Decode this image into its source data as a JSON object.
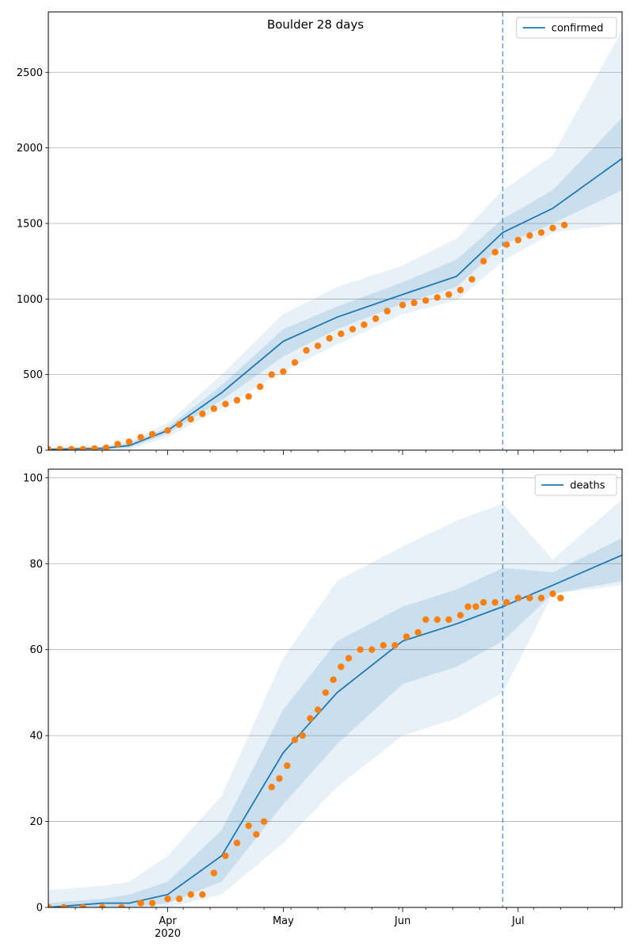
{
  "figure": {
    "title": "Boulder 28 days"
  },
  "colors": {
    "model": "#1f77b4",
    "observed": "#ff7f0e",
    "band": "#1f77b4",
    "grid": "#b0b0b0"
  },
  "x_axis": {
    "start": "2020-03-01",
    "end": "2020-07-28",
    "ticks": [
      {
        "date": "2020-04-01",
        "label": "Apr",
        "sublabel": "2020"
      },
      {
        "date": "2020-05-01",
        "label": "May",
        "sublabel": ""
      },
      {
        "date": "2020-06-01",
        "label": "Jun",
        "sublabel": ""
      },
      {
        "date": "2020-07-01",
        "label": "Jul",
        "sublabel": ""
      }
    ],
    "vline_date": "2020-06-27"
  },
  "chart_data": [
    {
      "type": "line",
      "legend": "confirmed",
      "legend_position": "top-right",
      "grid": "y",
      "ylim": [
        0,
        2900
      ],
      "yticks": [
        0,
        500,
        1000,
        1500,
        2000,
        2500
      ],
      "forecast_vline": "2020-06-27",
      "model": {
        "name": "confirmed",
        "x": [
          "2020-03-01",
          "2020-03-15",
          "2020-03-22",
          "2020-04-01",
          "2020-04-15",
          "2020-05-01",
          "2020-05-15",
          "2020-06-01",
          "2020-06-15",
          "2020-06-27",
          "2020-07-10",
          "2020-07-28"
        ],
        "median": [
          5,
          12,
          30,
          130,
          380,
          720,
          880,
          1030,
          1150,
          1440,
          1600,
          1930
        ],
        "band_inner": {
          "lower": [
            0,
            5,
            15,
            110,
            330,
            620,
            800,
            970,
            1080,
            1360,
            1500,
            1720
          ],
          "upper": [
            10,
            20,
            45,
            150,
            430,
            800,
            950,
            1110,
            1260,
            1530,
            1720,
            2200
          ]
        },
        "band_outer": {
          "lower": [
            0,
            0,
            5,
            85,
            280,
            520,
            700,
            900,
            990,
            1250,
            1440,
            1500
          ],
          "upper": [
            20,
            30,
            60,
            180,
            500,
            900,
            1080,
            1220,
            1400,
            1720,
            1950,
            2780
          ]
        }
      },
      "observed": {
        "name": "observed",
        "points": [
          [
            "2020-03-01",
            5
          ],
          [
            "2020-03-04",
            5
          ],
          [
            "2020-03-07",
            5
          ],
          [
            "2020-03-10",
            6
          ],
          [
            "2020-03-13",
            10
          ],
          [
            "2020-03-16",
            15
          ],
          [
            "2020-03-19",
            40
          ],
          [
            "2020-03-22",
            55
          ],
          [
            "2020-03-25",
            85
          ],
          [
            "2020-03-28",
            105
          ],
          [
            "2020-04-01",
            130
          ],
          [
            "2020-04-04",
            170
          ],
          [
            "2020-04-07",
            205
          ],
          [
            "2020-04-10",
            240
          ],
          [
            "2020-04-13",
            275
          ],
          [
            "2020-04-16",
            305
          ],
          [
            "2020-04-19",
            330
          ],
          [
            "2020-04-22",
            355
          ],
          [
            "2020-04-25",
            420
          ],
          [
            "2020-04-28",
            500
          ],
          [
            "2020-05-01",
            520
          ],
          [
            "2020-05-04",
            580
          ],
          [
            "2020-05-07",
            660
          ],
          [
            "2020-05-10",
            690
          ],
          [
            "2020-05-13",
            740
          ],
          [
            "2020-05-16",
            770
          ],
          [
            "2020-05-19",
            800
          ],
          [
            "2020-05-22",
            830
          ],
          [
            "2020-05-25",
            870
          ],
          [
            "2020-05-28",
            920
          ],
          [
            "2020-06-01",
            960
          ],
          [
            "2020-06-04",
            975
          ],
          [
            "2020-06-07",
            990
          ],
          [
            "2020-06-10",
            1010
          ],
          [
            "2020-06-13",
            1030
          ],
          [
            "2020-06-16",
            1060
          ],
          [
            "2020-06-19",
            1130
          ],
          [
            "2020-06-22",
            1250
          ],
          [
            "2020-06-25",
            1310
          ],
          [
            "2020-06-28",
            1360
          ],
          [
            "2020-07-01",
            1390
          ],
          [
            "2020-07-04",
            1420
          ],
          [
            "2020-07-07",
            1440
          ],
          [
            "2020-07-10",
            1470
          ],
          [
            "2020-07-13",
            1490
          ]
        ]
      }
    },
    {
      "type": "line",
      "legend": "deaths",
      "legend_position": "top-right",
      "grid": "y",
      "ylim": [
        0,
        102
      ],
      "yticks": [
        0,
        20,
        40,
        60,
        80,
        100
      ],
      "forecast_vline": "2020-06-27",
      "model": {
        "name": "deaths",
        "x": [
          "2020-03-01",
          "2020-03-15",
          "2020-03-22",
          "2020-04-01",
          "2020-04-15",
          "2020-05-01",
          "2020-05-15",
          "2020-06-01",
          "2020-06-15",
          "2020-06-27",
          "2020-07-10",
          "2020-07-28"
        ],
        "median": [
          0,
          1,
          1,
          3,
          12,
          36,
          50,
          62,
          66,
          70,
          75,
          82
        ],
        "band_inner": {
          "lower": [
            0,
            0,
            0,
            1,
            6,
            24,
            38,
            52,
            56,
            62,
            73,
            76
          ],
          "upper": [
            1,
            2,
            3,
            6,
            18,
            46,
            62,
            70,
            74,
            79,
            78,
            86
          ]
        },
        "band_outer": {
          "lower": [
            0,
            0,
            0,
            0,
            3,
            15,
            28,
            40,
            44,
            50,
            73,
            75
          ],
          "upper": [
            4,
            5,
            6,
            12,
            26,
            58,
            76,
            84,
            90,
            94,
            81,
            95
          ]
        }
      },
      "observed": {
        "name": "observed",
        "points": [
          [
            "2020-03-01",
            0
          ],
          [
            "2020-03-05",
            0
          ],
          [
            "2020-03-10",
            0
          ],
          [
            "2020-03-15",
            0
          ],
          [
            "2020-03-20",
            0
          ],
          [
            "2020-03-25",
            1
          ],
          [
            "2020-03-28",
            1
          ],
          [
            "2020-04-01",
            2
          ],
          [
            "2020-04-04",
            2
          ],
          [
            "2020-04-07",
            3
          ],
          [
            "2020-04-10",
            3
          ],
          [
            "2020-04-13",
            8
          ],
          [
            "2020-04-16",
            12
          ],
          [
            "2020-04-19",
            15
          ],
          [
            "2020-04-22",
            19
          ],
          [
            "2020-04-24",
            17
          ],
          [
            "2020-04-26",
            20
          ],
          [
            "2020-04-28",
            28
          ],
          [
            "2020-04-30",
            30
          ],
          [
            "2020-05-02",
            33
          ],
          [
            "2020-05-04",
            39
          ],
          [
            "2020-05-06",
            40
          ],
          [
            "2020-05-08",
            44
          ],
          [
            "2020-05-10",
            46
          ],
          [
            "2020-05-12",
            50
          ],
          [
            "2020-05-14",
            53
          ],
          [
            "2020-05-16",
            56
          ],
          [
            "2020-05-18",
            58
          ],
          [
            "2020-05-21",
            60
          ],
          [
            "2020-05-24",
            60
          ],
          [
            "2020-05-27",
            61
          ],
          [
            "2020-05-30",
            61
          ],
          [
            "2020-06-02",
            63
          ],
          [
            "2020-06-05",
            64
          ],
          [
            "2020-06-07",
            67
          ],
          [
            "2020-06-10",
            67
          ],
          [
            "2020-06-13",
            67
          ],
          [
            "2020-06-16",
            68
          ],
          [
            "2020-06-18",
            70
          ],
          [
            "2020-06-20",
            70
          ],
          [
            "2020-06-22",
            71
          ],
          [
            "2020-06-25",
            71
          ],
          [
            "2020-06-28",
            71
          ],
          [
            "2020-07-01",
            72
          ],
          [
            "2020-07-04",
            72
          ],
          [
            "2020-07-07",
            72
          ],
          [
            "2020-07-10",
            73
          ],
          [
            "2020-07-12",
            72
          ]
        ]
      }
    }
  ]
}
